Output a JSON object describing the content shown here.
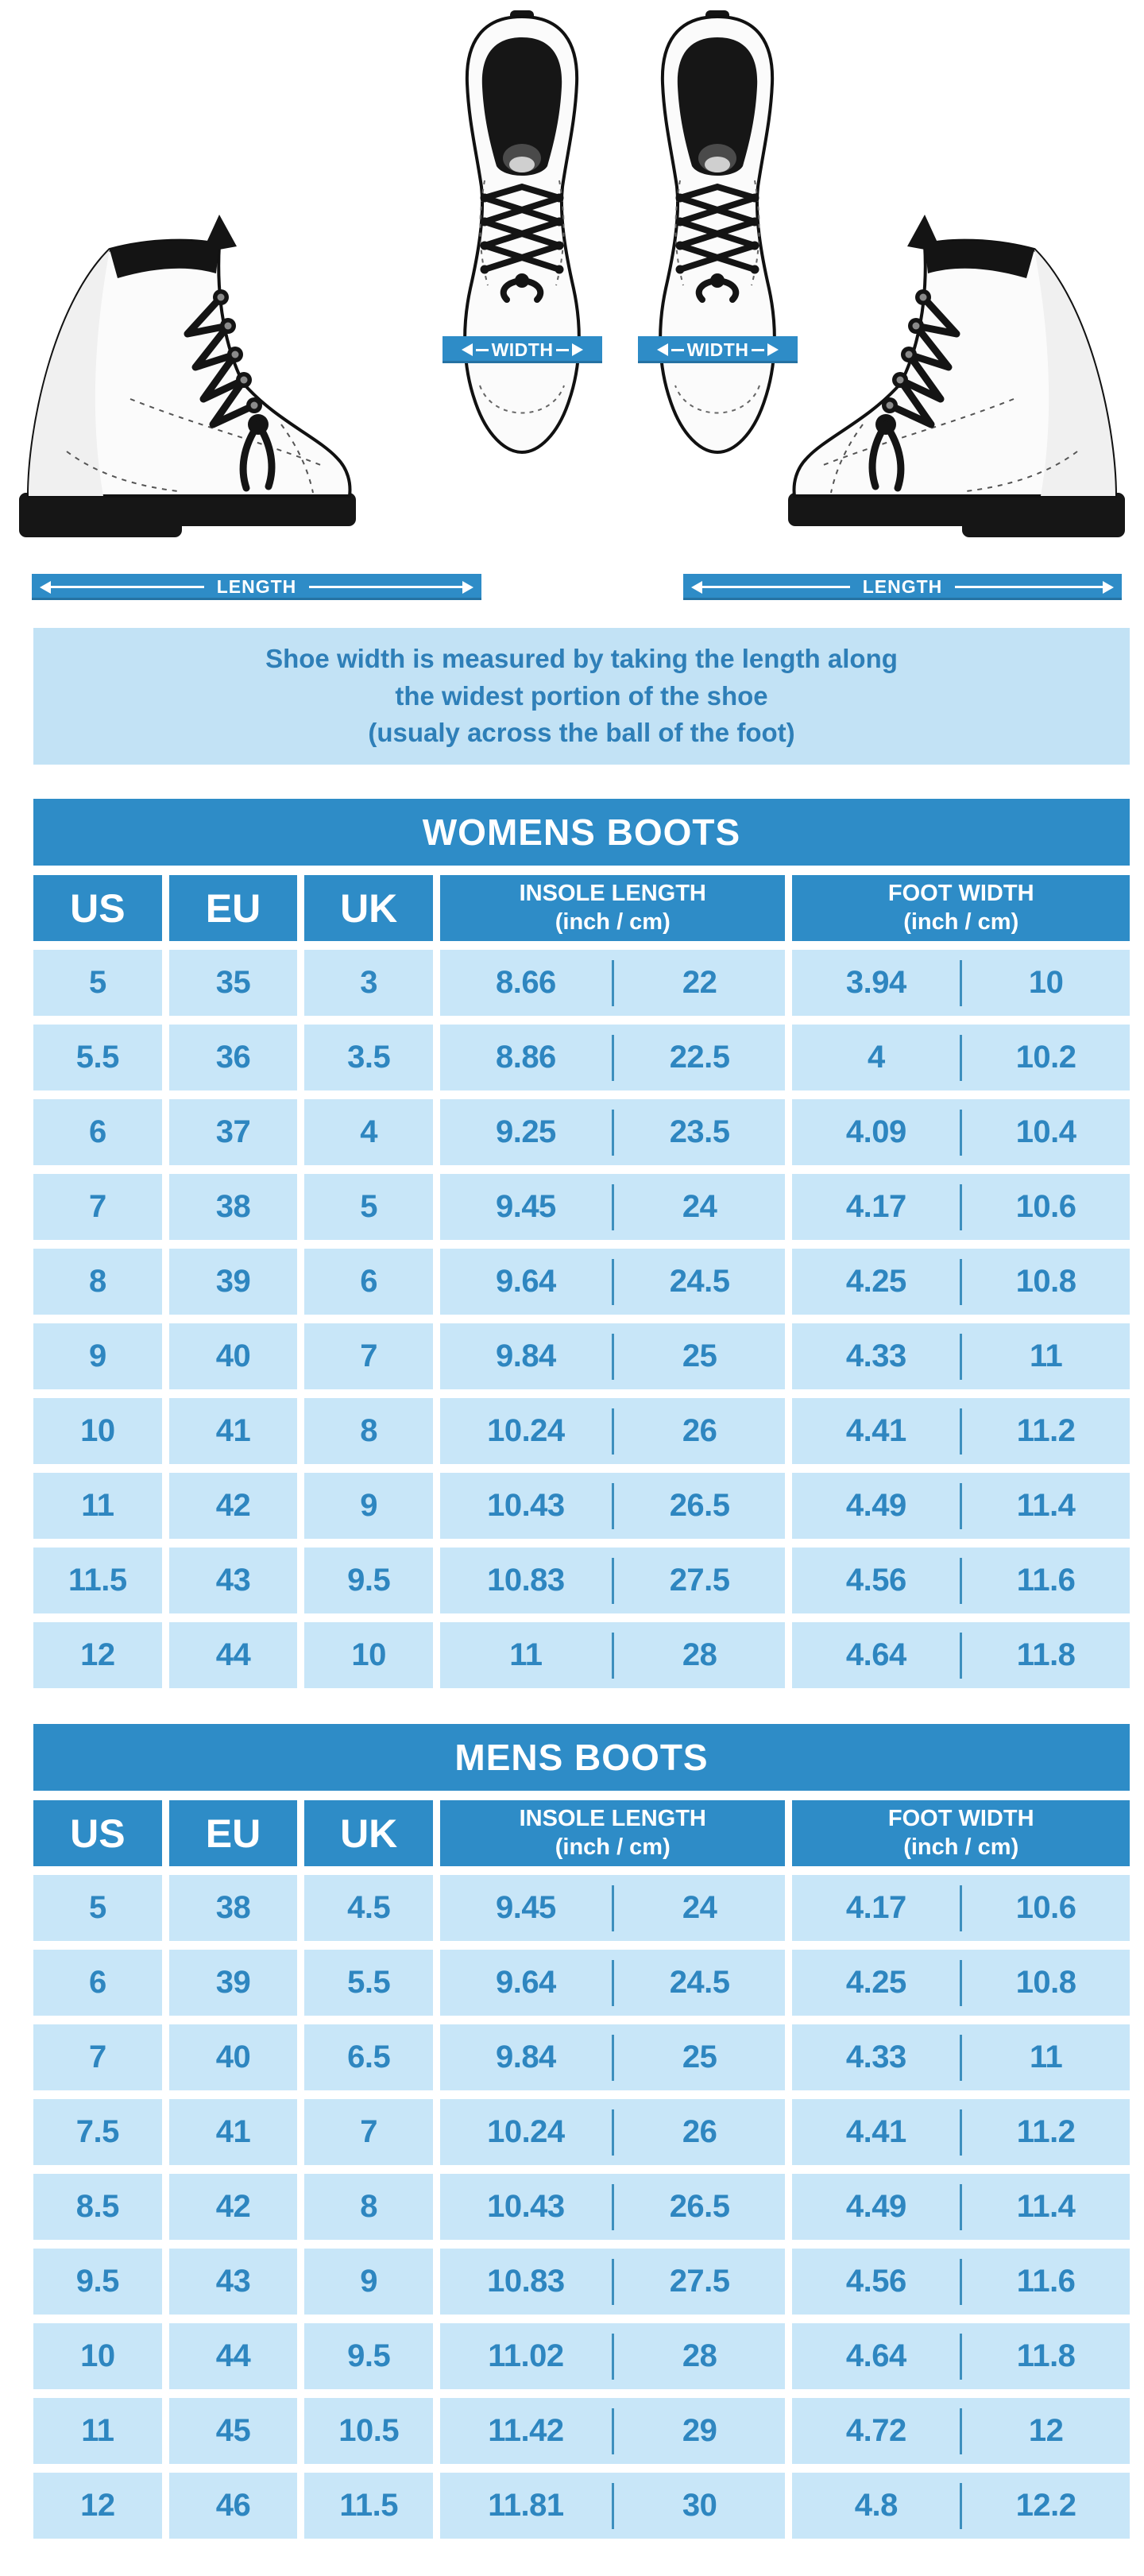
{
  "colors": {
    "primary_blue": "#2e8cc7",
    "cell_blue": "#c8e6f8",
    "value_text_blue": "#2e86c0",
    "divider_blue": "#3d8fbe",
    "note_background": "#c2e2f5",
    "note_text": "#2e7fb8",
    "boot_black": "#141414",
    "boot_white": "#fbfbfb"
  },
  "diagram": {
    "width_label": "WIDTH",
    "length_label": "LENGTH"
  },
  "note": {
    "lines": [
      "Shoe width is measured by taking the length along",
      "the widest portion of the shoe",
      "(usualy across the ball of the foot)"
    ]
  },
  "tables": [
    {
      "title": "WOMENS BOOTS",
      "columns": {
        "us": "US",
        "eu": "EU",
        "uk": "UK",
        "insole_line1": "INSOLE LENGTH",
        "insole_line2": "(inch / cm)",
        "foot_line1": "FOOT WIDTH",
        "foot_line2": "(inch / cm)"
      },
      "rows": [
        [
          "5",
          "35",
          "3",
          "8.66",
          "22",
          "3.94",
          "10"
        ],
        [
          "5.5",
          "36",
          "3.5",
          "8.86",
          "22.5",
          "4",
          "10.2"
        ],
        [
          "6",
          "37",
          "4",
          "9.25",
          "23.5",
          "4.09",
          "10.4"
        ],
        [
          "7",
          "38",
          "5",
          "9.45",
          "24",
          "4.17",
          "10.6"
        ],
        [
          "8",
          "39",
          "6",
          "9.64",
          "24.5",
          "4.25",
          "10.8"
        ],
        [
          "9",
          "40",
          "7",
          "9.84",
          "25",
          "4.33",
          "11"
        ],
        [
          "10",
          "41",
          "8",
          "10.24",
          "26",
          "4.41",
          "11.2"
        ],
        [
          "11",
          "42",
          "9",
          "10.43",
          "26.5",
          "4.49",
          "11.4"
        ],
        [
          "11.5",
          "43",
          "9.5",
          "10.83",
          "27.5",
          "4.56",
          "11.6"
        ],
        [
          "12",
          "44",
          "10",
          "11",
          "28",
          "4.64",
          "11.8"
        ]
      ]
    },
    {
      "title": "MENS BOOTS",
      "columns": {
        "us": "US",
        "eu": "EU",
        "uk": "UK",
        "insole_line1": "INSOLE LENGTH",
        "insole_line2": "(inch / cm)",
        "foot_line1": "FOOT WIDTH",
        "foot_line2": "(inch / cm)"
      },
      "rows": [
        [
          "5",
          "38",
          "4.5",
          "9.45",
          "24",
          "4.17",
          "10.6"
        ],
        [
          "6",
          "39",
          "5.5",
          "9.64",
          "24.5",
          "4.25",
          "10.8"
        ],
        [
          "7",
          "40",
          "6.5",
          "9.84",
          "25",
          "4.33",
          "11"
        ],
        [
          "7.5",
          "41",
          "7",
          "10.24",
          "26",
          "4.41",
          "11.2"
        ],
        [
          "8.5",
          "42",
          "8",
          "10.43",
          "26.5",
          "4.49",
          "11.4"
        ],
        [
          "9.5",
          "43",
          "9",
          "10.83",
          "27.5",
          "4.56",
          "11.6"
        ],
        [
          "10",
          "44",
          "9.5",
          "11.02",
          "28",
          "4.64",
          "11.8"
        ],
        [
          "11",
          "45",
          "10.5",
          "11.42",
          "29",
          "4.72",
          "12"
        ],
        [
          "12",
          "46",
          "11.5",
          "11.81",
          "30",
          "4.8",
          "12.2"
        ]
      ]
    }
  ]
}
